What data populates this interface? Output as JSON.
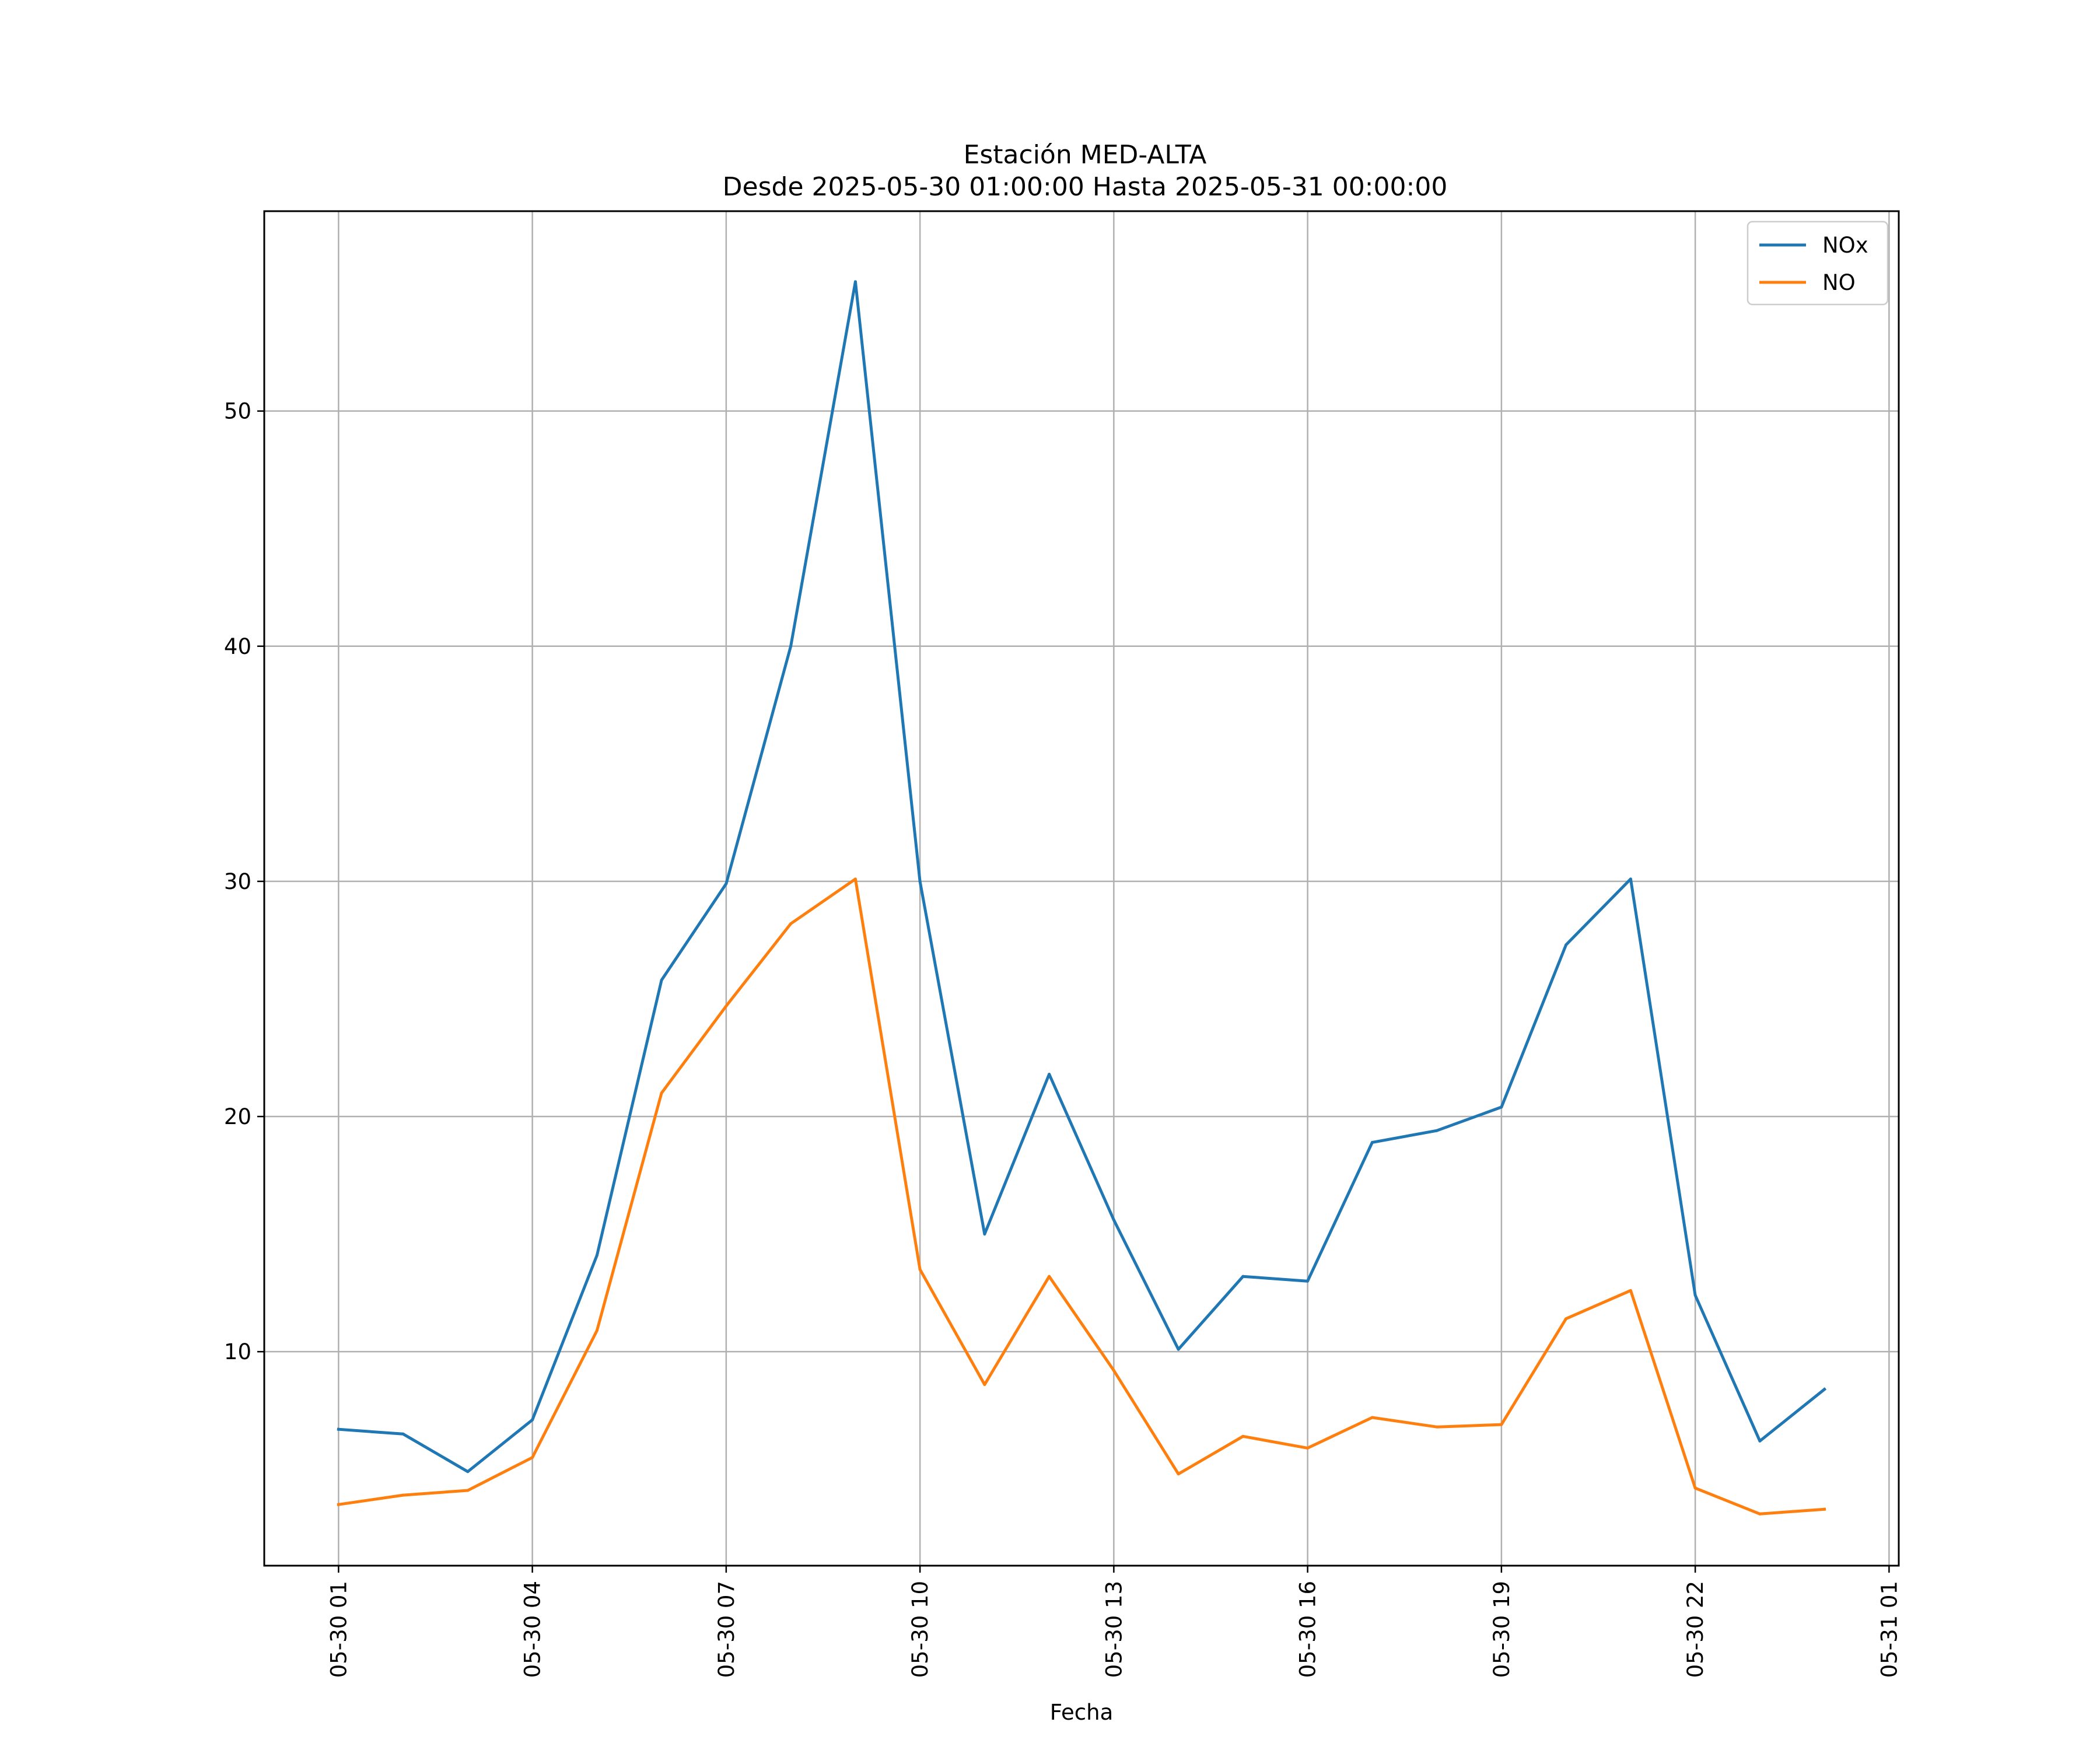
{
  "chart_data": {
    "type": "line",
    "title": "Estación MED-ALTA",
    "subtitle": "Desde 2025-05-30 01:00:00 Hasta 2025-05-31 00:00:00",
    "xlabel": "Fecha",
    "ylabel": "",
    "x": [
      "2025-05-30 01:00",
      "2025-05-30 02:00",
      "2025-05-30 03:00",
      "2025-05-30 04:00",
      "2025-05-30 05:00",
      "2025-05-30 06:00",
      "2025-05-30 07:00",
      "2025-05-30 08:00",
      "2025-05-30 09:00",
      "2025-05-30 10:00",
      "2025-05-30 11:00",
      "2025-05-30 12:00",
      "2025-05-30 13:00",
      "2025-05-30 14:00",
      "2025-05-30 15:00",
      "2025-05-30 16:00",
      "2025-05-30 17:00",
      "2025-05-30 18:00",
      "2025-05-30 19:00",
      "2025-05-30 20:00",
      "2025-05-30 21:00",
      "2025-05-30 22:00",
      "2025-05-30 23:00",
      "2025-05-31 00:00"
    ],
    "xticks": [
      "05-30 01",
      "05-30 04",
      "05-30 07",
      "05-30 10",
      "05-30 13",
      "05-30 16",
      "05-30 19",
      "05-30 22",
      "05-31 01"
    ],
    "xlim": [
      "2025-05-29 23:51",
      "2025-05-31 01:09"
    ],
    "yticks": [
      10,
      20,
      30,
      40,
      50
    ],
    "ylim": [
      0.9,
      58.5
    ],
    "grid": true,
    "legend_position": "top-right",
    "series": [
      {
        "name": "NOx",
        "color": "#1f77b4",
        "values": [
          6.7,
          6.5,
          4.9,
          7.1,
          14.1,
          25.8,
          29.9,
          40.0,
          55.5,
          30.0,
          15.0,
          21.8,
          15.6,
          10.1,
          13.2,
          13.0,
          18.9,
          19.4,
          20.4,
          27.3,
          30.1,
          12.4,
          6.2,
          8.4
        ]
      },
      {
        "name": "NO",
        "color": "#ff7f0e",
        "values": [
          3.5,
          3.9,
          4.1,
          5.5,
          10.9,
          21.0,
          24.7,
          28.2,
          30.1,
          13.5,
          8.6,
          13.2,
          9.2,
          4.8,
          6.4,
          5.9,
          7.2,
          6.8,
          6.9,
          11.4,
          12.6,
          4.2,
          3.1,
          3.3
        ]
      }
    ]
  }
}
